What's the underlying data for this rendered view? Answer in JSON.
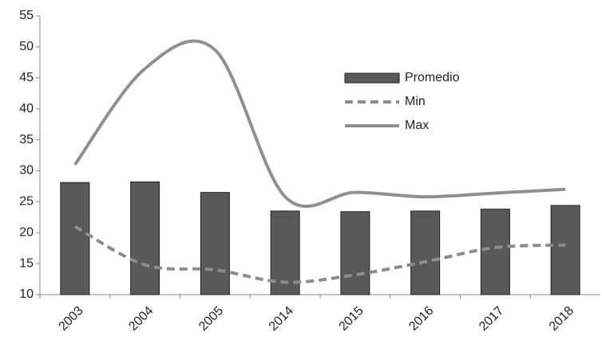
{
  "chart_data": {
    "type": "bar-line",
    "categories": [
      "2003",
      "2004",
      "2005",
      "2014",
      "2015",
      "2016",
      "2017",
      "2018"
    ],
    "series": [
      {
        "name": "Promedio",
        "type": "bar",
        "color": "#595959",
        "values": [
          28.1,
          28.2,
          26.5,
          23.5,
          23.4,
          23.5,
          23.8,
          24.4
        ]
      },
      {
        "name": "Min",
        "type": "line",
        "dashed": true,
        "color": "#8c8c8c",
        "values": [
          21,
          14.8,
          14,
          12,
          13.2,
          15.3,
          17.6,
          18
        ]
      },
      {
        "name": "Max",
        "type": "line",
        "dashed": false,
        "color": "#8f8f8f",
        "values": [
          31,
          46.5,
          49.5,
          25.8,
          26.5,
          25.8,
          26.4,
          27
        ]
      }
    ],
    "ylim": [
      10,
      55
    ],
    "yticks": [
      10,
      15,
      20,
      25,
      30,
      35,
      40,
      45,
      50,
      55
    ],
    "grid": false
  }
}
